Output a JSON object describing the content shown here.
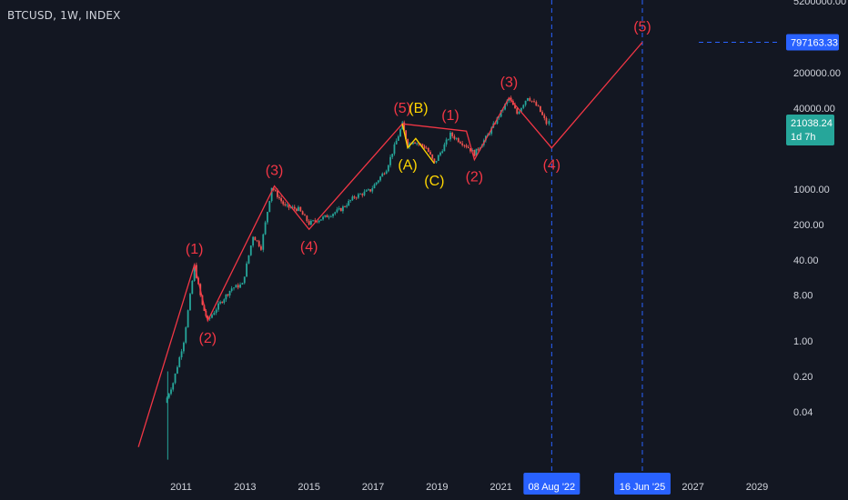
{
  "header": {
    "symbol_title": "BTCUSD, 1W, INDEX"
  },
  "colors": {
    "background": "#131722",
    "text": "#d1d4dc",
    "wave_red": "#f23645",
    "wave_yellow": "#ffd600",
    "candle_up": "#26a69a",
    "candle_down": "#ef5350",
    "projection_line": "#2962ff",
    "price_tag_green": "#26a69a",
    "date_tag_blue": "#2962ff"
  },
  "chart_data": {
    "type": "line",
    "title": "BTCUSD, 1W, INDEX",
    "y_scale": "log",
    "grid": false,
    "y_axis_ticks": [
      "5200000.00",
      "797163.33",
      "200000.00",
      "40000.00",
      "21038.24",
      "1000.00",
      "200.00",
      "40.00",
      "8.00",
      "1.00",
      "0.20",
      "0.04"
    ],
    "x_axis_ticks": [
      "2011",
      "2013",
      "2015",
      "2017",
      "2019",
      "2021",
      "08 Aug '22",
      "16 Jun '25",
      "2027",
      "2029"
    ],
    "price_tags": [
      {
        "value": "797163.33",
        "style": "target"
      },
      {
        "value": "21038.24",
        "countdown": "1d 7h",
        "style": "last"
      }
    ],
    "date_tags": [
      "08 Aug '22",
      "16 Jun '25"
    ],
    "series": [
      {
        "name": "",
        "kind": "price",
        "points": [
          {
            "x": "2010-07",
            "y": 0.06
          },
          {
            "x": "2010-10",
            "y": 0.15
          },
          {
            "x": "2011-02",
            "y": 1.0
          },
          {
            "x": "2011-06",
            "y": 30
          },
          {
            "x": "2011-09",
            "y": 5
          },
          {
            "x": "2011-11",
            "y": 2.5
          },
          {
            "x": "2012-03",
            "y": 5
          },
          {
            "x": "2012-08",
            "y": 11
          },
          {
            "x": "2012-12",
            "y": 13
          },
          {
            "x": "2013-04",
            "y": 120
          },
          {
            "x": "2013-07",
            "y": 70
          },
          {
            "x": "2013-11",
            "y": 1100
          },
          {
            "x": "2014-04",
            "y": 450
          },
          {
            "x": "2014-09",
            "y": 400
          },
          {
            "x": "2015-01",
            "y": 210
          },
          {
            "x": "2015-07",
            "y": 280
          },
          {
            "x": "2016-01",
            "y": 400
          },
          {
            "x": "2016-06",
            "y": 700
          },
          {
            "x": "2016-12",
            "y": 950
          },
          {
            "x": "2017-06",
            "y": 2500
          },
          {
            "x": "2017-12",
            "y": 19000
          },
          {
            "x": "2018-02",
            "y": 7500
          },
          {
            "x": "2018-04",
            "y": 9000
          },
          {
            "x": "2018-09",
            "y": 6500
          },
          {
            "x": "2018-12",
            "y": 3200
          },
          {
            "x": "2019-06",
            "y": 12000
          },
          {
            "x": "2019-12",
            "y": 7200
          },
          {
            "x": "2020-03",
            "y": 5000
          },
          {
            "x": "2020-08",
            "y": 11500
          },
          {
            "x": "2021-01",
            "y": 33000
          },
          {
            "x": "2021-04",
            "y": 63000
          },
          {
            "x": "2021-07",
            "y": 31000
          },
          {
            "x": "2021-11",
            "y": 67000
          },
          {
            "x": "2022-03",
            "y": 40000
          },
          {
            "x": "2022-06",
            "y": 20000
          },
          {
            "x": "2022-07",
            "y": 21038.24
          }
        ]
      },
      {
        "name": "",
        "kind": "wave_red",
        "points": [
          {
            "x": "2009-09",
            "y": 0.008
          },
          {
            "x": "2011-06",
            "y": 32
          },
          {
            "x": "2011-11",
            "y": 2.5
          },
          {
            "x": "2013-12",
            "y": 1150
          },
          {
            "x": "2015-01",
            "y": 160
          },
          {
            "x": "2017-12",
            "y": 19500
          },
          {
            "x": "2019-12",
            "y": 14000
          },
          {
            "x": "2020-03",
            "y": 3800
          },
          {
            "x": "2021-04",
            "y": 64000
          },
          {
            "x": "2022-08",
            "y": 6500
          },
          {
            "x": "2025-06",
            "y": 797163.33
          }
        ]
      },
      {
        "name": "",
        "kind": "wave_yellow",
        "points": [
          {
            "x": "2017-12",
            "y": 19500
          },
          {
            "x": "2018-02",
            "y": 6500
          },
          {
            "x": "2018-05",
            "y": 10000
          },
          {
            "x": "2018-12",
            "y": 3200
          }
        ]
      }
    ],
    "wave_labels": [
      {
        "text": "(1)",
        "x": "2011-06",
        "y": 32,
        "color": "red",
        "pos": "above"
      },
      {
        "text": "(2)",
        "x": "2011-11",
        "y": 2.5,
        "color": "red",
        "pos": "below"
      },
      {
        "text": "(3)",
        "x": "2013-12",
        "y": 1150,
        "color": "red",
        "pos": "above"
      },
      {
        "text": "(4)",
        "x": "2015-01",
        "y": 160,
        "color": "red",
        "pos": "below"
      },
      {
        "text": "(5)",
        "x": "2017-12",
        "y": 19500,
        "color": "red",
        "pos": "above"
      },
      {
        "text": "(B)",
        "x": "2018-04",
        "y": 19500,
        "color": "yellow",
        "pos": "above"
      },
      {
        "text": "(A)",
        "x": "2018-02",
        "y": 6500,
        "color": "yellow",
        "pos": "below"
      },
      {
        "text": "(C)",
        "x": "2018-12",
        "y": 3200,
        "color": "yellow",
        "pos": "below"
      },
      {
        "text": "(1)",
        "x": "2019-06",
        "y": 14000,
        "color": "red",
        "pos": "above"
      },
      {
        "text": "(2)",
        "x": "2020-03",
        "y": 3800,
        "color": "red",
        "pos": "below"
      },
      {
        "text": "(3)",
        "x": "2021-04",
        "y": 64000,
        "color": "red",
        "pos": "above"
      },
      {
        "text": "(4)",
        "x": "2022-08",
        "y": 6500,
        "color": "red",
        "pos": "below"
      },
      {
        "text": "(5)",
        "x": "2025-06",
        "y": 797163.33,
        "color": "red",
        "pos": "above"
      }
    ]
  }
}
